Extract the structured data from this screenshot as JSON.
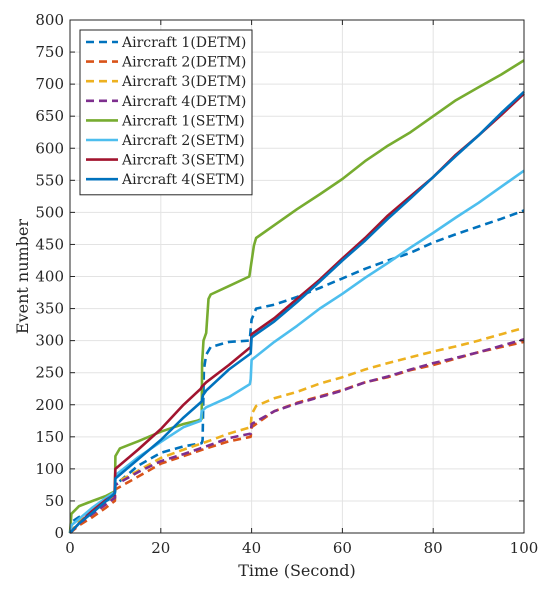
{
  "chart_data": {
    "type": "line",
    "xlabel": "Time (Second)",
    "ylabel": "Event number",
    "xlim": [
      0,
      100
    ],
    "ylim": [
      0,
      800
    ],
    "xticks": [
      0,
      20,
      40,
      60,
      80,
      100
    ],
    "yticks": [
      0,
      50,
      100,
      150,
      200,
      250,
      300,
      350,
      400,
      450,
      500,
      550,
      600,
      650,
      700,
      750,
      800
    ],
    "grid": true,
    "legend_position": "top-left",
    "series": [
      {
        "name": "Aircraft 1(DETM)",
        "style": "dashed",
        "color": "#0072BD",
        "x": [
          0,
          0.5,
          2,
          5,
          8,
          9.9,
          10,
          15,
          20,
          25,
          29,
          29.2,
          29.5,
          30,
          31,
          35,
          39.5,
          39.6,
          40,
          41,
          45,
          50,
          55,
          60,
          65,
          70,
          75,
          80,
          85,
          90,
          95,
          100
        ],
        "y": [
          0,
          18,
          25,
          35,
          50,
          58,
          75,
          105,
          125,
          135,
          140,
          145,
          255,
          278,
          290,
          298,
          300,
          302,
          333,
          350,
          356,
          368,
          382,
          397,
          412,
          425,
          437,
          453,
          466,
          478,
          490,
          503
        ]
      },
      {
        "name": "Aircraft 2(DETM)",
        "style": "dashed",
        "color": "#D95319",
        "x": [
          0,
          2,
          5,
          8,
          9.9,
          10,
          15,
          20,
          25,
          30,
          35,
          39.8,
          40,
          45,
          50,
          55,
          60,
          65,
          70,
          75,
          80,
          85,
          90,
          95,
          100
        ],
        "y": [
          0,
          12,
          25,
          40,
          50,
          68,
          88,
          108,
          120,
          132,
          143,
          150,
          165,
          190,
          203,
          213,
          223,
          235,
          243,
          254,
          262,
          272,
          282,
          290,
          298
        ]
      },
      {
        "name": "Aircraft 3(DETM)",
        "style": "dashed",
        "color": "#EDB120",
        "x": [
          0,
          2,
          5,
          8,
          9.9,
          10,
          15,
          20,
          25,
          30,
          35,
          39.8,
          40,
          41,
          45,
          50,
          55,
          60,
          65,
          70,
          75,
          80,
          85,
          90,
          95,
          100
        ],
        "y": [
          0,
          18,
          32,
          48,
          58,
          78,
          97,
          117,
          130,
          142,
          155,
          165,
          185,
          198,
          210,
          220,
          233,
          243,
          255,
          265,
          274,
          283,
          291,
          300,
          310,
          320
        ]
      },
      {
        "name": "Aircraft 4(DETM)",
        "style": "dashed",
        "color": "#7E2F8E",
        "x": [
          0,
          2,
          5,
          8,
          9.9,
          10,
          15,
          20,
          25,
          30,
          35,
          39.8,
          40,
          45,
          50,
          55,
          60,
          65,
          70,
          75,
          80,
          85,
          90,
          95,
          100
        ],
        "y": [
          0,
          15,
          30,
          45,
          55,
          75,
          95,
          112,
          123,
          135,
          148,
          155,
          170,
          190,
          202,
          212,
          222,
          235,
          244,
          255,
          265,
          273,
          282,
          292,
          302
        ]
      },
      {
        "name": "Aircraft 1(SETM)",
        "style": "solid",
        "color": "#77AC30",
        "x": [
          0,
          0.3,
          2,
          5,
          8,
          9.9,
          10,
          11,
          15,
          20,
          25,
          28,
          29,
          29.1,
          29.4,
          30,
          30.5,
          31,
          35,
          39.5,
          39.6,
          40.5,
          41,
          45,
          50,
          55,
          60,
          65,
          70,
          75,
          80,
          85,
          90,
          95,
          100
        ],
        "y": [
          0,
          30,
          42,
          50,
          58,
          65,
          120,
          132,
          143,
          158,
          170,
          175,
          178,
          265,
          300,
          312,
          365,
          372,
          385,
          400,
          405,
          448,
          460,
          480,
          505,
          528,
          552,
          580,
          604,
          625,
          650,
          675,
          695,
          715,
          737
        ]
      },
      {
        "name": "Aircraft 2(SETM)",
        "style": "solid",
        "color": "#4DBEEE",
        "x": [
          0,
          0.3,
          2,
          5,
          8,
          9.9,
          10,
          15,
          20,
          25,
          28.8,
          29,
          30,
          35,
          39.6,
          39.8,
          40,
          45,
          50,
          55,
          60,
          65,
          70,
          75,
          80,
          85,
          90,
          95,
          100
        ],
        "y": [
          0,
          12,
          22,
          40,
          55,
          64,
          90,
          118,
          142,
          165,
          175,
          190,
          196,
          212,
          232,
          240,
          270,
          298,
          323,
          350,
          373,
          398,
          421,
          445,
          468,
          492,
          515,
          540,
          565
        ]
      },
      {
        "name": "Aircraft 3(SETM)",
        "style": "solid",
        "color": "#A2142F",
        "x": [
          0,
          2,
          5,
          8,
          9.8,
          10,
          15,
          20,
          25,
          28.8,
          29,
          30,
          35,
          39.8,
          40,
          45,
          50,
          55,
          60,
          65,
          70,
          75,
          80,
          85,
          90,
          95,
          100
        ],
        "y": [
          0,
          15,
          35,
          52,
          60,
          100,
          130,
          162,
          200,
          225,
          228,
          235,
          262,
          290,
          310,
          335,
          365,
          395,
          428,
          460,
          495,
          525,
          555,
          590,
          620,
          652,
          685
        ]
      },
      {
        "name": "Aircraft 4(SETM)",
        "style": "solid",
        "color": "#0072BD",
        "x": [
          0,
          2,
          5,
          8,
          9.9,
          10,
          15,
          20,
          25,
          29,
          29.3,
          30,
          35,
          39.8,
          40,
          45,
          50,
          55,
          60,
          65,
          70,
          75,
          80,
          85,
          90,
          95,
          100
        ],
        "y": [
          0,
          15,
          32,
          50,
          62,
          85,
          115,
          145,
          180,
          205,
          215,
          222,
          255,
          280,
          305,
          330,
          360,
          392,
          425,
          456,
          490,
          522,
          555,
          588,
          620,
          655,
          688
        ]
      }
    ]
  }
}
